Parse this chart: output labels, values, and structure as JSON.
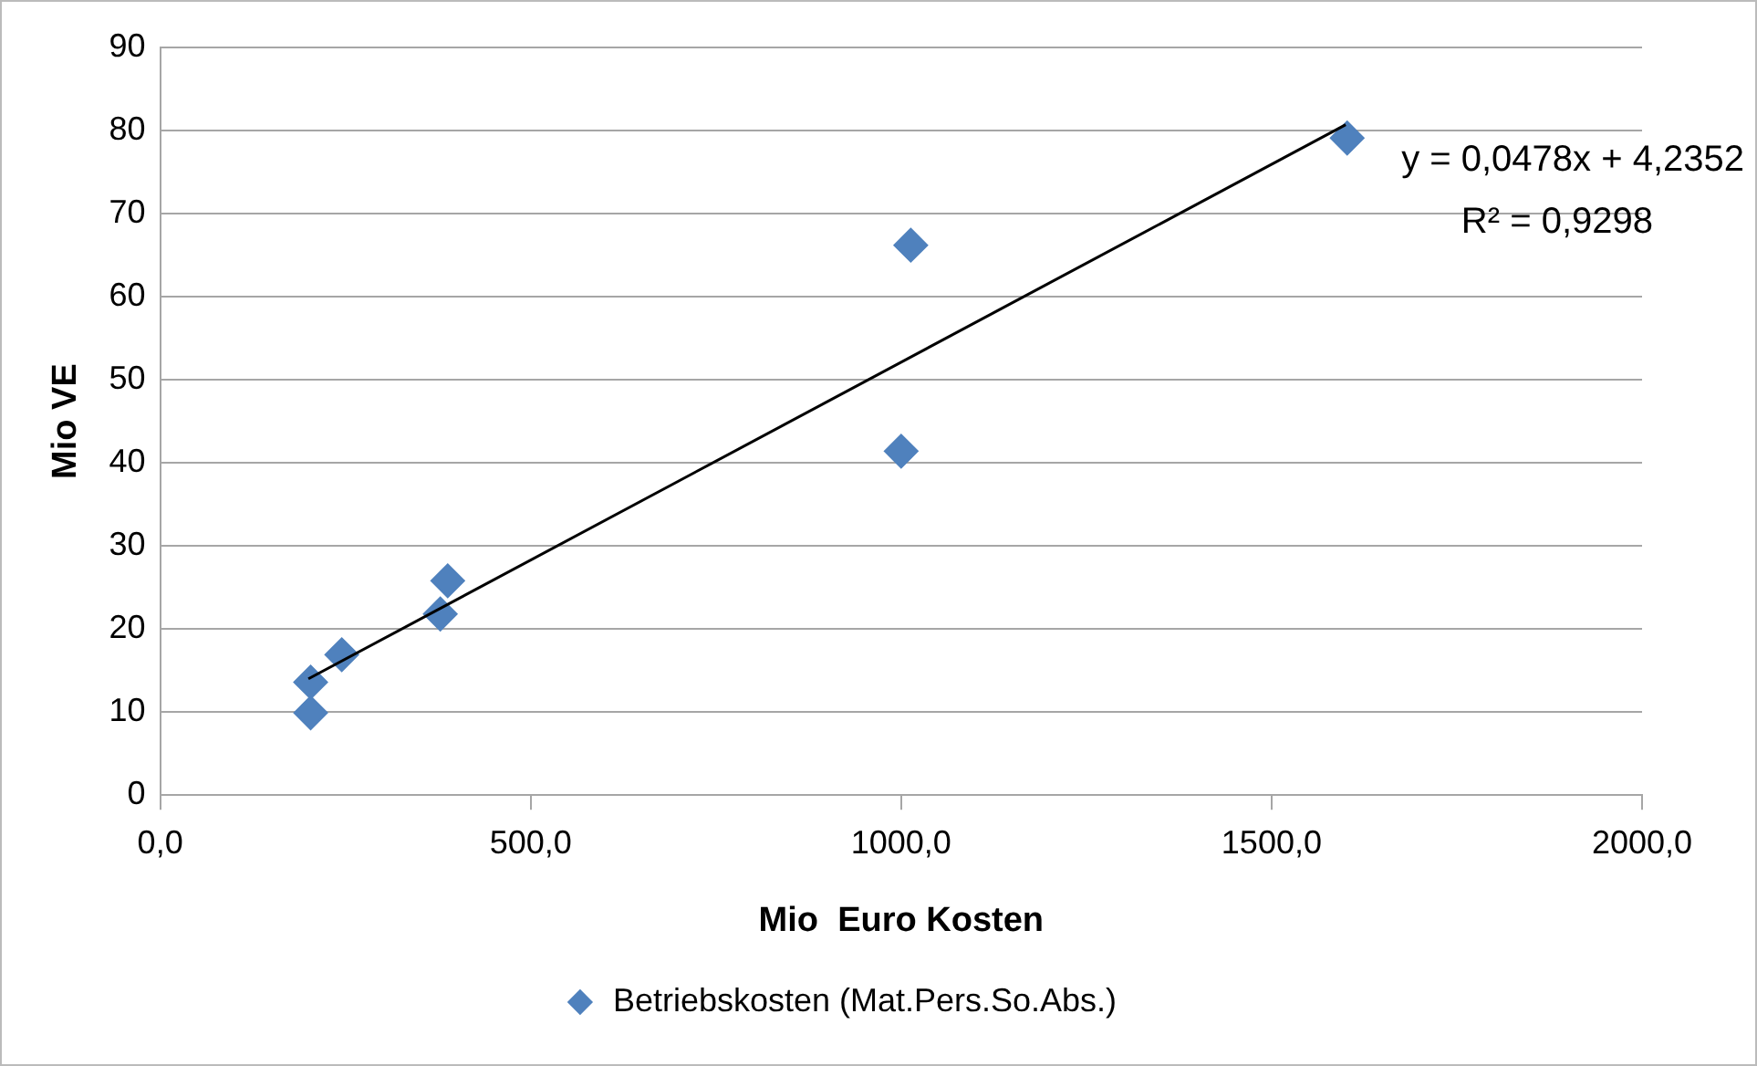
{
  "chart_data": {
    "type": "scatter",
    "xlabel": "Mio  Euro Kosten",
    "ylabel": "Mio VE",
    "series": [
      {
        "name": "Betriebskosten (Mat.Pers.So.Abs.)",
        "color": "#4f81bd",
        "marker": "diamond",
        "x": [
          203,
          203,
          245,
          378,
          388,
          1000,
          1013,
          1602
        ],
        "values": [
          9.9,
          13.6,
          16.9,
          21.8,
          25.8,
          41.4,
          66.2,
          79.1
        ]
      },
      {
        "type": "line",
        "marker": "none",
        "color": "#000000",
        "x": [
          200,
          1600
        ],
        "values": [
          14.0,
          80.7
        ]
      }
    ],
    "xlim": [
      0,
      2000
    ],
    "xticks": [
      {
        "value": 0,
        "label": "0,0"
      },
      {
        "value": 500,
        "label": "500,0"
      },
      {
        "value": 1000,
        "label": "1000,0"
      },
      {
        "value": 1500,
        "label": "1500,0"
      },
      {
        "value": 2000,
        "label": "2000,0"
      }
    ],
    "ylim": [
      0,
      90
    ],
    "yticks": [
      0,
      10,
      20,
      30,
      40,
      50,
      60,
      70,
      80,
      90
    ],
    "grid": "y",
    "legend": "bottom",
    "annotations": [
      "y = 0,0478x + 4,2352",
      "R² = 0,9298"
    ]
  }
}
